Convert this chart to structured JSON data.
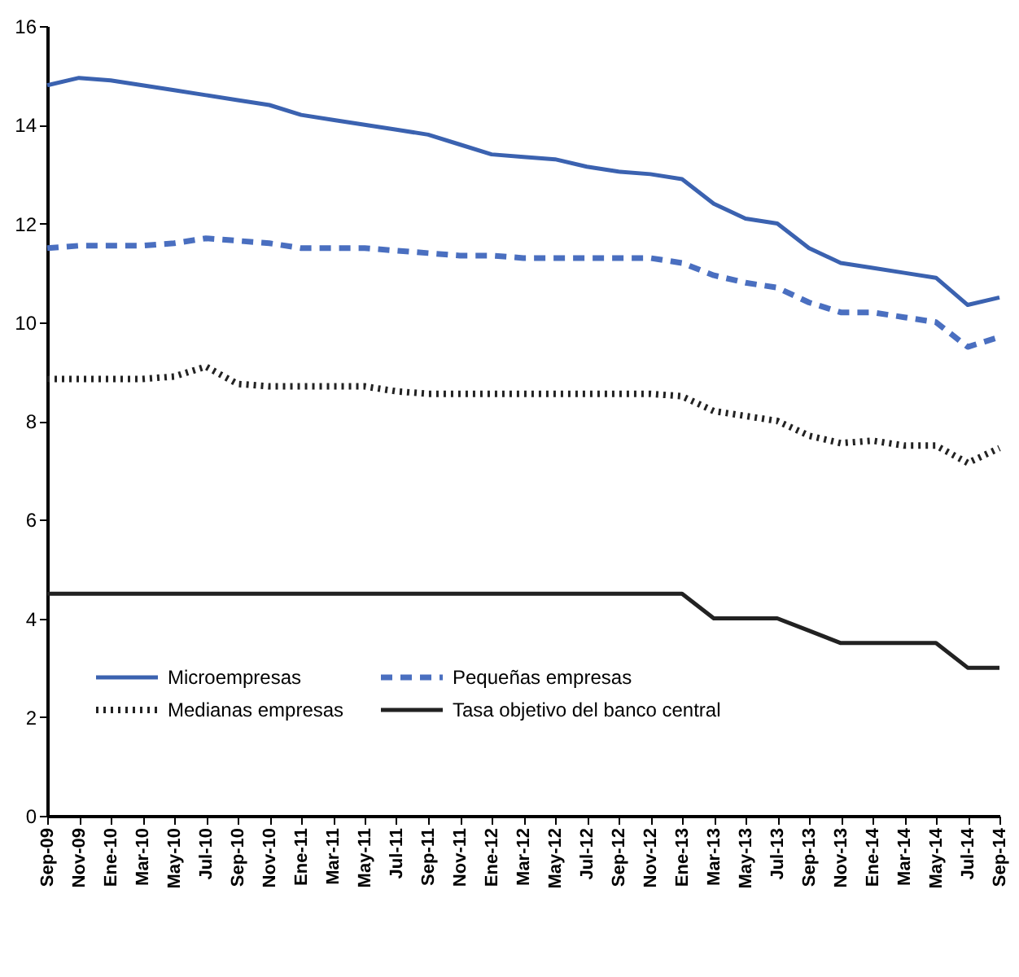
{
  "chart_data": {
    "type": "line",
    "categories": [
      "Sep-09",
      "Nov-09",
      "Ene-10",
      "Mar-10",
      "May-10",
      "Jul-10",
      "Sep-10",
      "Nov-10",
      "Ene-11",
      "Mar-11",
      "May-11",
      "Jul-11",
      "Sep-11",
      "Nov-11",
      "Ene-12",
      "Mar-12",
      "May-12",
      "Jul-12",
      "Sep-12",
      "Nov-12",
      "Ene-13",
      "Mar-13",
      "May-13",
      "Jul-13",
      "Sep-13",
      "Nov-13",
      "Ene-14",
      "Mar-14",
      "May-14",
      "Jul-14",
      "Sep-14"
    ],
    "series": [
      {
        "name": "Microempresas",
        "color": "#3b62b0",
        "line_style": "solid",
        "values": [
          14.8,
          14.95,
          14.9,
          14.8,
          14.7,
          14.6,
          14.5,
          14.4,
          14.2,
          14.1,
          14.0,
          13.9,
          13.8,
          13.6,
          13.4,
          13.35,
          13.3,
          13.15,
          13.05,
          13.0,
          12.9,
          12.4,
          12.1,
          12.0,
          11.5,
          11.2,
          11.1,
          11.0,
          10.9,
          10.35,
          10.5
        ]
      },
      {
        "name": "Pequeñas empresas",
        "color": "#4a6fc0",
        "line_style": "dashed",
        "values": [
          11.5,
          11.55,
          11.55,
          11.55,
          11.6,
          11.7,
          11.65,
          11.6,
          11.5,
          11.5,
          11.5,
          11.45,
          11.4,
          11.35,
          11.35,
          11.3,
          11.3,
          11.3,
          11.3,
          11.3,
          11.2,
          10.95,
          10.8,
          10.7,
          10.4,
          10.2,
          10.2,
          10.1,
          10.0,
          9.5,
          9.7
        ]
      },
      {
        "name": "Medianas empresas",
        "color": "#222222",
        "line_style": "dotted",
        "values": [
          8.85,
          8.85,
          8.85,
          8.85,
          8.9,
          9.1,
          8.75,
          8.7,
          8.7,
          8.7,
          8.7,
          8.6,
          8.55,
          8.55,
          8.55,
          8.55,
          8.55,
          8.55,
          8.55,
          8.55,
          8.5,
          8.2,
          8.1,
          8.0,
          7.7,
          7.55,
          7.6,
          7.5,
          7.5,
          7.15,
          7.45
        ]
      },
      {
        "name": "Tasa objetivo del banco central",
        "color": "#222222",
        "line_style": "solid",
        "values": [
          4.5,
          4.5,
          4.5,
          4.5,
          4.5,
          4.5,
          4.5,
          4.5,
          4.5,
          4.5,
          4.5,
          4.5,
          4.5,
          4.5,
          4.5,
          4.5,
          4.5,
          4.5,
          4.5,
          4.5,
          4.5,
          4.0,
          4.0,
          4.0,
          3.75,
          3.5,
          3.5,
          3.5,
          3.5,
          3.0,
          3.0
        ]
      }
    ],
    "ylim": [
      0,
      16
    ],
    "yticks": [
      0,
      2,
      4,
      6,
      8,
      10,
      12,
      14,
      16
    ],
    "legend": "bottom left"
  }
}
